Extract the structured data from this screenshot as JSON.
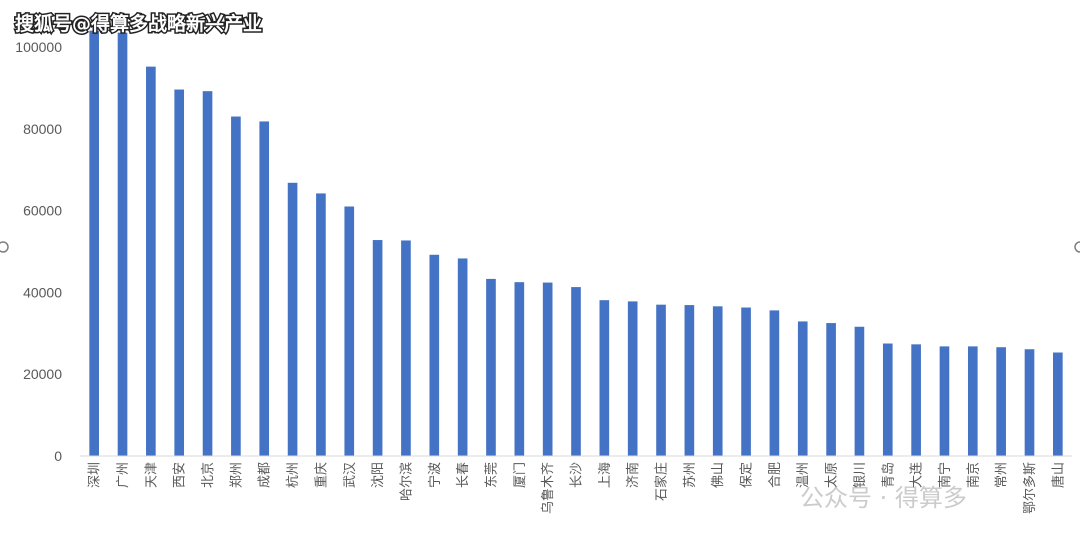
{
  "watermark_top": "搜狐号@得算多战略新兴产业",
  "watermark_bottom": "公众号 · 得算多",
  "colors": {
    "bar": "#4472C4",
    "tick": "#595959"
  },
  "chart_data": {
    "type": "bar",
    "title": "",
    "xlabel": "",
    "ylabel": "",
    "ylim": [
      0,
      100000
    ],
    "yticks": [
      0,
      20000,
      40000,
      60000,
      80000,
      100000
    ],
    "grid": false,
    "categories": [
      "深圳",
      "广州",
      "天津",
      "西安",
      "北京",
      "郑州",
      "成都",
      "杭州",
      "重庆",
      "武汉",
      "沈阳",
      "哈尔滨",
      "宁波",
      "长春",
      "东莞",
      "厦门",
      "乌鲁木齐",
      "长沙",
      "上海",
      "济南",
      "石家庄",
      "苏州",
      "佛山",
      "保定",
      "合肥",
      "温州",
      "太原",
      "银川",
      "青岛",
      "大连",
      "南宁",
      "南京",
      "常州",
      "鄂尔多斯",
      "唐山"
    ],
    "values": [
      104000,
      103500,
      95200,
      89600,
      89200,
      83000,
      81800,
      66800,
      64200,
      61000,
      52800,
      52700,
      49200,
      48300,
      43300,
      42500,
      42400,
      41300,
      38100,
      37800,
      37000,
      36900,
      36600,
      36300,
      35600,
      32900,
      32500,
      31600,
      27500,
      27300,
      26800,
      26800,
      26600,
      26100,
      25300
    ]
  }
}
